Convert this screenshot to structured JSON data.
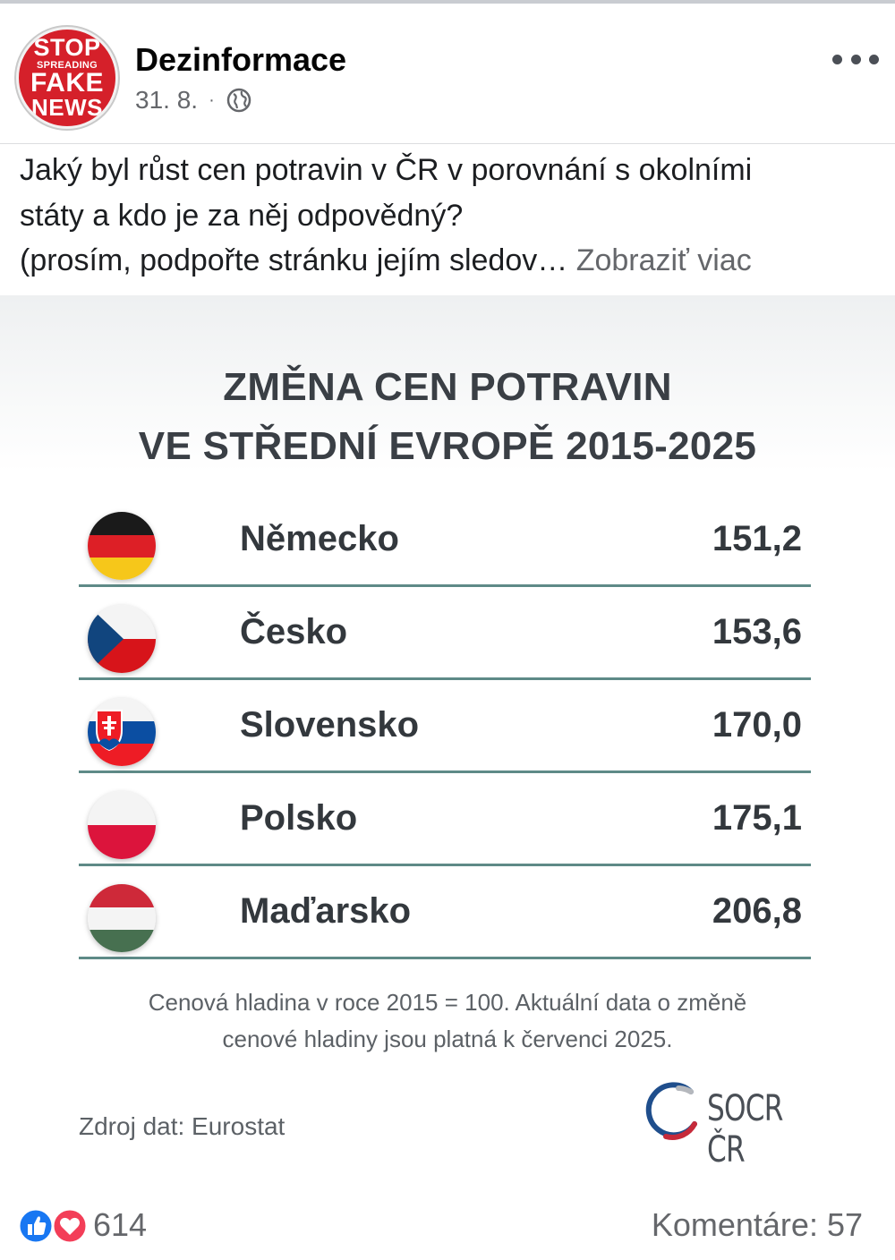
{
  "post": {
    "page_name": "Dezinformace",
    "date": "31. 8.",
    "separator": "·",
    "audience_icon": "globe-icon",
    "avatar_text": [
      "STOP",
      "SPREADING",
      "FAKE",
      "NEWS"
    ],
    "text_lines": [
      "Jaký byl růst cen potravin v ČR v porovnání s okolními",
      "státy a kdo je za něj odpovědný?",
      "(prosím, podpořte stránku jejím sledov…"
    ],
    "see_more": "Zobraziť viac"
  },
  "image": {
    "title_lines": [
      "ZMĚNA CEN POTRAVIN",
      "VE STŘEDNÍ EVROPĚ 2015-2025"
    ],
    "rows": [
      {
        "country": "Německo",
        "value": "151,2",
        "flag": "germany"
      },
      {
        "country": "Česko",
        "value": "153,6",
        "flag": "czechia"
      },
      {
        "country": "Slovensko",
        "value": "170,0",
        "flag": "slovakia"
      },
      {
        "country": "Polsko",
        "value": "175,1",
        "flag": "poland"
      },
      {
        "country": "Maďarsko",
        "value": "206,8",
        "flag": "hungary"
      }
    ],
    "note_lines": [
      "Cenová hladina v roce 2015 = 100. Aktuální data o změně",
      "cenové hladiny jsou platná k červenci 2025."
    ],
    "source": "Zdroj dat: Eurostat",
    "logo_text": "SOCR ČR"
  },
  "footer": {
    "reactions_count": "614",
    "comments": "Komentáre: 57",
    "reaction_icons": [
      "like-icon",
      "love-icon"
    ]
  },
  "colors": {
    "row_divider": "#5e8a87",
    "avatar_red": "#d5202a",
    "like_blue": "#1877f2",
    "love_red": "#f33e58"
  }
}
